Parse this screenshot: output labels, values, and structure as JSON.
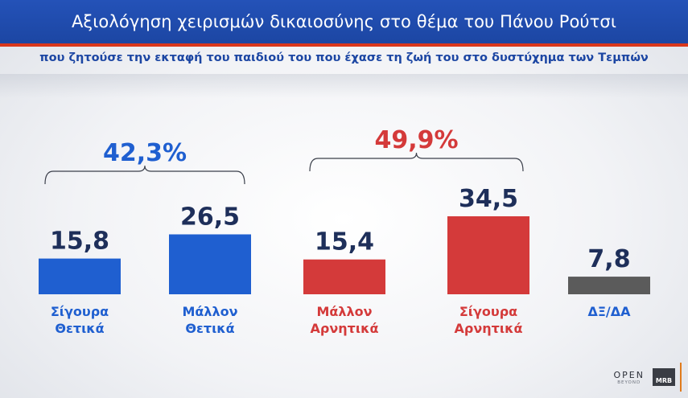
{
  "header": {
    "title": "Αξιολόγηση χειρισμών δικαιοσύνης στο θέμα του Πάνου Ρούτσι",
    "subtitle": "που ζητούσε την εκταφή του παιδιού του που έχασε τη ζωή του στο δυστύχημα των Τεμπών"
  },
  "chart_data": {
    "type": "bar",
    "title": "Αξιολόγηση χειρισμών δικαιοσύνης στο θέμα του Πάνου Ρούτσι",
    "subtitle": "που ζητούσε την εκταφή του παιδιού του που έχασε τη ζωή του στο δυστύχημα των Τεμπών",
    "categories": [
      [
        "Σίγουρα",
        "Θετικά"
      ],
      [
        "Μάλλον",
        "Θετικά"
      ],
      [
        "Μάλλον",
        "Αρνητικά"
      ],
      [
        "Σίγουρα",
        "Αρνητικά"
      ],
      [
        "ΔΞ/ΔΑ"
      ]
    ],
    "values": [
      15.8,
      26.5,
      15.4,
      34.5,
      7.8
    ],
    "value_labels": [
      "15,8",
      "26,5",
      "15,4",
      "34,5",
      "7,8"
    ],
    "colors": [
      "#1f5fd0",
      "#1f5fd0",
      "#d43a3a",
      "#d43a3a",
      "#5b5b5b"
    ],
    "label_colors": [
      "#1f5fd0",
      "#1f5fd0",
      "#d43a3a",
      "#d43a3a",
      "#1f5fd0"
    ],
    "value_text_color": "#1e2f5a",
    "groups": [
      {
        "label": "42,3%",
        "value": 42.3,
        "color": "#1f5fd0",
        "from": 0,
        "to": 1
      },
      {
        "label": "49,9%",
        "value": 49.9,
        "color": "#d43a3a",
        "from": 2,
        "to": 3
      }
    ],
    "ylim": [
      0,
      34.5
    ],
    "grid": false,
    "legend": "none"
  },
  "branding": {
    "open_logo": "OPEN",
    "open_sub": "BEYOND",
    "mrb_logo": "MRB"
  }
}
